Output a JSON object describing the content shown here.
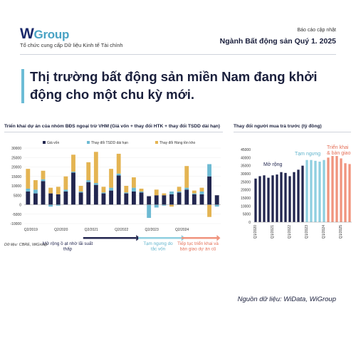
{
  "brand": {
    "logo_w": "W",
    "logo_text": "Group",
    "tagline": "Tổ chức cung cấp Dữ liệu Kinh tế Tài chính"
  },
  "report": {
    "kind": "Báo cáo cập nhật",
    "industry": "Ngành Bất động sản Quý 1. 2025"
  },
  "headline": "Thị trường bất động sản miền Nam đang khởi động cho một chu kỳ mới.",
  "source_left": "Dữ liệu: CBRE, WiGroup",
  "source_right": "Nguồn dữ liệu: WiData, WiGroup",
  "colors": {
    "navy": "#22264f",
    "lightblue": "#6dbad3",
    "gold": "#e4b452",
    "dark_phase": "#22264f",
    "mid_phase": "#8fcfe0",
    "late_phase": "#f0947e",
    "late_text": "#e46f57",
    "mid_text": "#5fb3cc"
  },
  "chart_data": [
    {
      "type": "bar",
      "stacked": true,
      "title": "Triển khai dự án của nhóm BĐS ngoại trừ VHM (Giá vốn + thay đổi HTK + thay đổi TSDD dài hạn)",
      "ylim": [
        -10000,
        30000
      ],
      "yticks": [
        "30000",
        "25000",
        "20000",
        "15000",
        "10000",
        "5000",
        "0",
        "-5000",
        "-10000"
      ],
      "x_labels": [
        {
          "index": 0,
          "label": "Q2/2019"
        },
        {
          "index": 4,
          "label": "Q2/2020"
        },
        {
          "index": 8,
          "label": "Q2/2021"
        },
        {
          "index": 12,
          "label": "Q2/2022"
        },
        {
          "index": 16,
          "label": "Q2/2023"
        },
        {
          "index": 20,
          "label": "Q2/2024"
        }
      ],
      "legend": [
        "Giá vốn",
        "Thay đổi TSDD dài hạn",
        "Thay đổi Hàng tồn kho"
      ],
      "series": [
        {
          "name": "Giá vốn",
          "color": "#22264f",
          "values": [
            7000,
            6000,
            12500,
            6000,
            5500,
            7000,
            17000,
            6500,
            12000,
            10500,
            6000,
            7500,
            15500,
            6000,
            7000,
            6500,
            4500,
            5000,
            5000,
            5500,
            6500,
            8000,
            5500,
            5500,
            15000,
            5000
          ]
        },
        {
          "name": "Thay đổi TSDD dài hạn",
          "color": "#6dbad3",
          "values": [
            1500,
            2000,
            1000,
            -1000,
            -500,
            1000,
            500,
            500,
            1000,
            1000,
            500,
            1500,
            1000,
            500,
            2000,
            500,
            -7000,
            -1500,
            -500,
            1500,
            500,
            1000,
            500,
            1500,
            6500,
            -1000
          ]
        },
        {
          "name": "Thay đổi Hàng tồn kho",
          "color": "#e4b452",
          "values": [
            10500,
            5000,
            4500,
            3000,
            4000,
            7000,
            9000,
            3000,
            9500,
            16500,
            3000,
            10000,
            10500,
            3500,
            5500,
            1500,
            0,
            3000,
            1000,
            -1000,
            2500,
            11500,
            1500,
            2000,
            -6500,
            0
          ]
        }
      ],
      "annotations": [
        {
          "text": "Mở rộng ồ ạt nhờ lãi suất thấp",
          "phase": "dark"
        },
        {
          "text": "Tạm ngưng do tắc vốn",
          "phase": "mid"
        },
        {
          "text": "Tiếp tục triển khai và bàn giao dự án cũ",
          "phase": "late"
        }
      ]
    },
    {
      "type": "bar",
      "title": "Thay đổi người mua trả trước (tỷ đồng)",
      "ylim": [
        0,
        45000
      ],
      "yticks": [
        "45000",
        "40000",
        "35000",
        "30000",
        "25000",
        "20000",
        "15000",
        "10000",
        "5000",
        "0"
      ],
      "x_labels": [
        {
          "index": 0,
          "label": "Q1/2020"
        },
        {
          "index": 4,
          "label": "Q1/2021"
        },
        {
          "index": 8,
          "label": "Q1/2022"
        },
        {
          "index": 12,
          "label": "Q1/2023"
        },
        {
          "index": 16,
          "label": "Q1/2024"
        },
        {
          "index": 20,
          "label": "Q1/2025"
        }
      ],
      "values": [
        27000,
        28500,
        29000,
        27500,
        29000,
        29500,
        31000,
        30500,
        28500,
        31000,
        32500,
        35000,
        38500,
        38500,
        38000,
        37500,
        38500,
        40000,
        41000,
        41000,
        39500,
        36500,
        36000
      ],
      "phases": [
        "dark",
        "dark",
        "dark",
        "dark",
        "dark",
        "dark",
        "dark",
        "dark",
        "dark",
        "dark",
        "dark",
        "dark",
        "mid",
        "mid",
        "mid",
        "mid",
        "mid",
        "late",
        "late",
        "late",
        "late",
        "late",
        "late"
      ],
      "annotations": [
        {
          "text": "Mở rộng",
          "phase": "dark"
        },
        {
          "text": "Tạm ngưng",
          "phase": "mid"
        },
        {
          "text": "Triển khai & bàn giao",
          "phase": "late"
        }
      ]
    }
  ]
}
